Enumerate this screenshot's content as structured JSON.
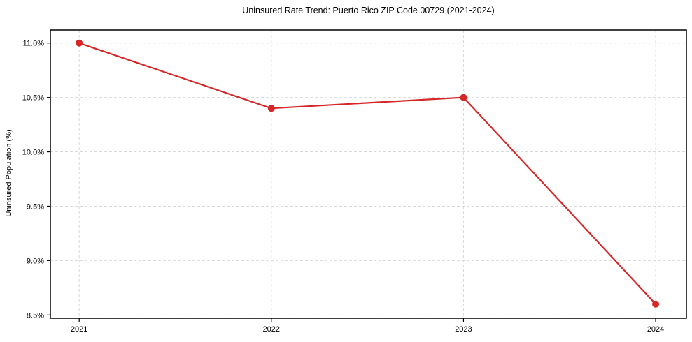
{
  "chart_data": {
    "type": "line",
    "title": "Uninsured Rate Trend: Puerto Rico ZIP Code 00729 (2021-2024)",
    "ylabel": "Uninsured Population (%)",
    "xlabel": "",
    "x": [
      2021,
      2022,
      2023,
      2024
    ],
    "series": [
      {
        "name": "Uninsured Rate",
        "values": [
          11.0,
          10.4,
          10.5,
          8.6
        ]
      }
    ],
    "xtick_labels": [
      "2021",
      "2022",
      "2023",
      "2024"
    ],
    "ytick_values": [
      8.5,
      9.0,
      9.5,
      10.0,
      10.5,
      11.0
    ],
    "ytick_labels": [
      "8.5%",
      "9.0%",
      "9.5%",
      "10.0%",
      "10.5%",
      "11.0%"
    ],
    "xlim": [
      2020.85,
      2024.16
    ],
    "ylim": [
      8.47,
      11.12
    ],
    "grid": true,
    "grid_style": "dashed",
    "grid_color": "#d9d9d9",
    "line_color": "#d62728",
    "marker": "circle",
    "spine_color": "#000000",
    "background": "#ffffff",
    "legend": "none"
  }
}
